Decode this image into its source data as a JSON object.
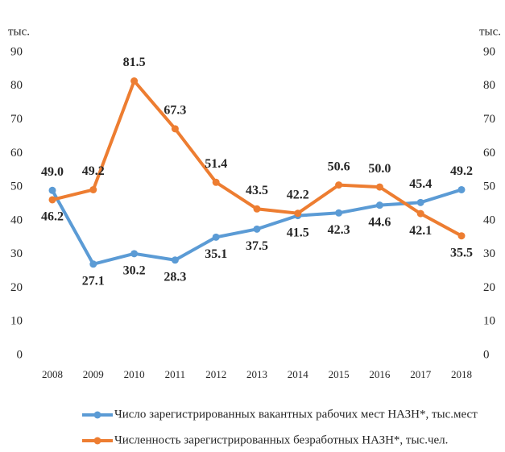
{
  "chart_data": {
    "type": "line",
    "y_label": "тыс.",
    "y2_label": "тыс.",
    "categories": [
      "2008",
      "2009",
      "2010",
      "2011",
      "2012",
      "2013",
      "2014",
      "2015",
      "2016",
      "2017",
      "2018"
    ],
    "series": [
      {
        "name": "Число зарегистрированных  вакантных  рабочих мест НАЗН*,  тыс.мест",
        "color": "#5b9bd5",
        "values": [
          49.0,
          27.1,
          30.2,
          28.3,
          35.1,
          37.5,
          41.5,
          42.3,
          44.6,
          45.4,
          49.2
        ],
        "value_labels": [
          "49.0",
          "27.1",
          "30.2",
          "28.3",
          "35.1",
          "37.5",
          "41.5",
          "42.3",
          "44.6",
          "45.4",
          "49.2"
        ]
      },
      {
        "name": "Численность зарегистрированных  безработных  НАЗН*, тыс.чел.",
        "color": "#ed7d31",
        "values": [
          46.2,
          49.2,
          81.5,
          67.3,
          51.4,
          43.5,
          42.2,
          50.6,
          50.0,
          42.1,
          35.5
        ],
        "value_labels": [
          "46.2",
          "49.2",
          "81.5",
          "67.3",
          "51.4",
          "43.5",
          "42.2",
          "50.6",
          "50.0",
          "42.1",
          "35.5"
        ]
      }
    ],
    "ylim": [
      0,
      90
    ],
    "yticks": [
      0,
      10,
      20,
      30,
      40,
      50,
      60,
      70,
      80,
      90
    ],
    "y2lim": [
      0,
      90
    ],
    "y2ticks": [
      0,
      10,
      20,
      30,
      40,
      50,
      60,
      70,
      80,
      90
    ],
    "legend": "bottom"
  }
}
